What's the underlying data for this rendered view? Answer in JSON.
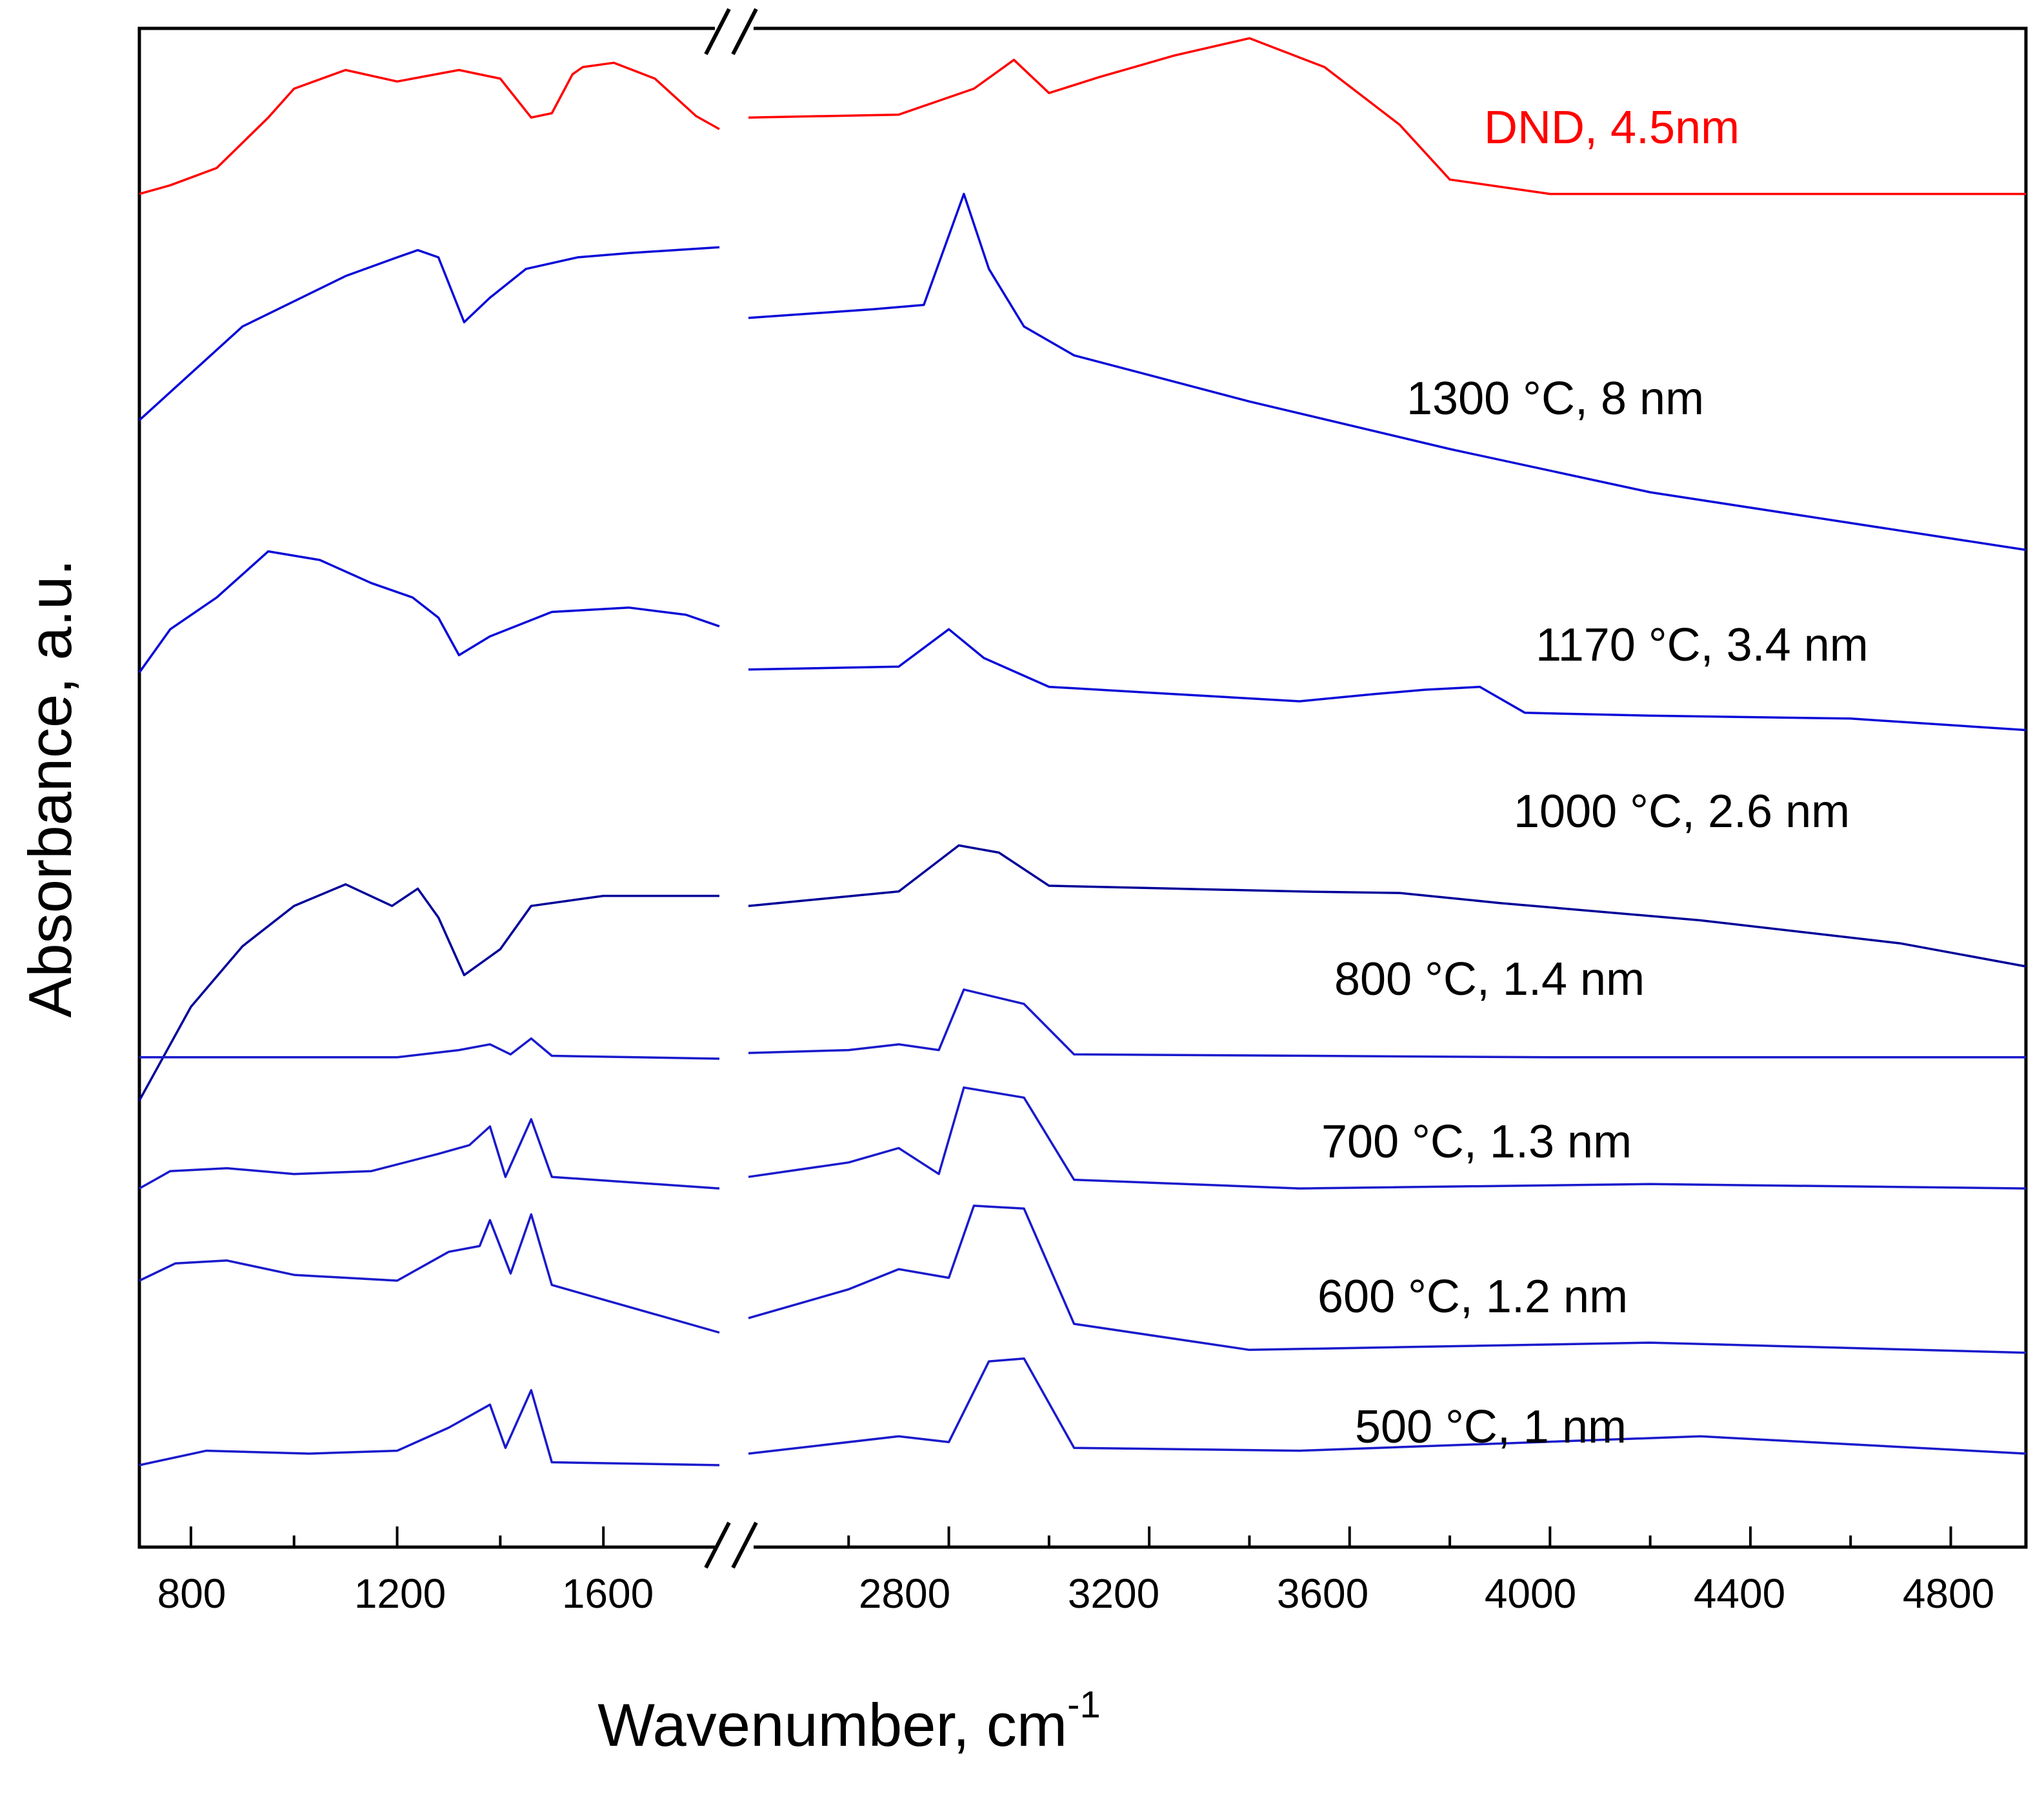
{
  "chart_data": {
    "type": "line",
    "title": "",
    "xlabel": "Wavenumber, cm",
    "xlabel_superscript": "-1",
    "ylabel": "Absorbance, a.u.",
    "axis_break": {
      "from": 1800,
      "to": 2400
    },
    "xlim_segments": [
      [
        700,
        1825
      ],
      [
        2400,
        4950
      ]
    ],
    "x_ticks": [
      "800",
      "1200",
      "1600",
      "2800",
      "3200",
      "3600",
      "4000",
      "4400",
      "4800"
    ],
    "x_tick_values": [
      800,
      1200,
      1600,
      2800,
      3200,
      3600,
      4000,
      4400,
      4800
    ],
    "ylim": [
      0,
      1
    ],
    "grid": false,
    "series": [
      {
        "name": "DND, 4.5nm",
        "color": "#ff0000",
        "points": [
          [
            700,
            0.912
          ],
          [
            760,
            0.918
          ],
          [
            850,
            0.93
          ],
          [
            950,
            0.965
          ],
          [
            1000,
            0.985
          ],
          [
            1100,
            0.998
          ],
          [
            1200,
            0.99
          ],
          [
            1320,
            0.998
          ],
          [
            1400,
            0.992
          ],
          [
            1460,
            0.965
          ],
          [
            1500,
            0.968
          ],
          [
            1540,
            0.995
          ],
          [
            1560,
            1.0
          ],
          [
            1620,
            1.003
          ],
          [
            1700,
            0.992
          ],
          [
            1780,
            0.966
          ],
          [
            1825,
            0.957
          ],
          [
            2400,
            0.965
          ],
          [
            2700,
            0.967
          ],
          [
            2850,
            0.985
          ],
          [
            2930,
            1.005
          ],
          [
            3000,
            0.982
          ],
          [
            3100,
            0.993
          ],
          [
            3250,
            1.008
          ],
          [
            3400,
            1.02
          ],
          [
            3550,
            1.0
          ],
          [
            3700,
            0.96
          ],
          [
            3800,
            0.922
          ],
          [
            4000,
            0.912
          ],
          [
            4950,
            0.912
          ]
        ]
      },
      {
        "name": "1300 °C, 8 nm",
        "color": "#0a0ad8",
        "points": [
          [
            700,
            0.755
          ],
          [
            900,
            0.82
          ],
          [
            1100,
            0.855
          ],
          [
            1200,
            0.868
          ],
          [
            1240,
            0.873
          ],
          [
            1280,
            0.868
          ],
          [
            1330,
            0.823
          ],
          [
            1380,
            0.84
          ],
          [
            1450,
            0.86
          ],
          [
            1550,
            0.868
          ],
          [
            1650,
            0.871
          ],
          [
            1825,
            0.875
          ],
          [
            2400,
            0.826
          ],
          [
            2650,
            0.832
          ],
          [
            2750,
            0.835
          ],
          [
            2830,
            0.912
          ],
          [
            2880,
            0.86
          ],
          [
            2950,
            0.82
          ],
          [
            3050,
            0.8
          ],
          [
            3400,
            0.768
          ],
          [
            3800,
            0.735
          ],
          [
            4200,
            0.705
          ],
          [
            4950,
            0.665
          ]
        ]
      },
      {
        "name": "1170 °C, 3.4 nm",
        "color": "#0a0ad8",
        "points": [
          [
            700,
            0.58
          ],
          [
            760,
            0.61
          ],
          [
            850,
            0.632
          ],
          [
            950,
            0.664
          ],
          [
            1050,
            0.658
          ],
          [
            1150,
            0.642
          ],
          [
            1230,
            0.632
          ],
          [
            1280,
            0.618
          ],
          [
            1320,
            0.592
          ],
          [
            1380,
            0.605
          ],
          [
            1500,
            0.622
          ],
          [
            1650,
            0.625
          ],
          [
            1760,
            0.62
          ],
          [
            1825,
            0.612
          ],
          [
            2400,
            0.582
          ],
          [
            2700,
            0.584
          ],
          [
            2800,
            0.61
          ],
          [
            2870,
            0.59
          ],
          [
            3000,
            0.57
          ],
          [
            3200,
            0.566
          ],
          [
            3500,
            0.56
          ],
          [
            3650,
            0.565
          ],
          [
            3750,
            0.568
          ],
          [
            3860,
            0.57
          ],
          [
            3950,
            0.552
          ],
          [
            4200,
            0.55
          ],
          [
            4600,
            0.548
          ],
          [
            4950,
            0.54
          ]
        ]
      },
      {
        "name": "1000 °C, 2.6 nm",
        "color": "#000099",
        "points": [
          [
            700,
            0.283
          ],
          [
            800,
            0.348
          ],
          [
            900,
            0.39
          ],
          [
            1000,
            0.418
          ],
          [
            1100,
            0.433
          ],
          [
            1190,
            0.418
          ],
          [
            1240,
            0.43
          ],
          [
            1280,
            0.41
          ],
          [
            1330,
            0.37
          ],
          [
            1400,
            0.388
          ],
          [
            1460,
            0.418
          ],
          [
            1600,
            0.425
          ],
          [
            1825,
            0.425
          ],
          [
            2400,
            0.418
          ],
          [
            2700,
            0.428
          ],
          [
            2820,
            0.46
          ],
          [
            2900,
            0.455
          ],
          [
            3000,
            0.432
          ],
          [
            3500,
            0.428
          ],
          [
            3700,
            0.427
          ],
          [
            3900,
            0.42
          ],
          [
            4300,
            0.408
          ],
          [
            4700,
            0.392
          ],
          [
            4950,
            0.376
          ]
        ]
      },
      {
        "name": "800 °C, 1.4 nm",
        "color": "#1a1acc",
        "points": [
          [
            700,
            0.313
          ],
          [
            1200,
            0.313
          ],
          [
            1320,
            0.318
          ],
          [
            1380,
            0.322
          ],
          [
            1420,
            0.315
          ],
          [
            1460,
            0.326
          ],
          [
            1500,
            0.314
          ],
          [
            1825,
            0.312
          ],
          [
            2400,
            0.316
          ],
          [
            2600,
            0.318
          ],
          [
            2700,
            0.322
          ],
          [
            2780,
            0.318
          ],
          [
            2830,
            0.36
          ],
          [
            2950,
            0.35
          ],
          [
            3050,
            0.315
          ],
          [
            4000,
            0.313
          ],
          [
            4950,
            0.313
          ]
        ]
      },
      {
        "name": "700 °C, 1.3 nm",
        "color": "#1a1acc",
        "points": [
          [
            700,
            0.222
          ],
          [
            760,
            0.234
          ],
          [
            870,
            0.236
          ],
          [
            1000,
            0.232
          ],
          [
            1150,
            0.234
          ],
          [
            1280,
            0.246
          ],
          [
            1340,
            0.252
          ],
          [
            1380,
            0.265
          ],
          [
            1410,
            0.23
          ],
          [
            1460,
            0.27
          ],
          [
            1500,
            0.23
          ],
          [
            1825,
            0.222
          ],
          [
            2400,
            0.23
          ],
          [
            2600,
            0.24
          ],
          [
            2700,
            0.25
          ],
          [
            2780,
            0.232
          ],
          [
            2830,
            0.292
          ],
          [
            2950,
            0.285
          ],
          [
            3050,
            0.228
          ],
          [
            3500,
            0.222
          ],
          [
            4200,
            0.225
          ],
          [
            4950,
            0.222
          ]
        ]
      },
      {
        "name": "600 °C, 1.2 nm",
        "color": "#1a1acc",
        "points": [
          [
            700,
            0.158
          ],
          [
            770,
            0.17
          ],
          [
            870,
            0.172
          ],
          [
            1000,
            0.162
          ],
          [
            1200,
            0.158
          ],
          [
            1300,
            0.178
          ],
          [
            1360,
            0.182
          ],
          [
            1380,
            0.2
          ],
          [
            1420,
            0.163
          ],
          [
            1460,
            0.204
          ],
          [
            1500,
            0.155
          ],
          [
            1825,
            0.122
          ],
          [
            2400,
            0.132
          ],
          [
            2600,
            0.152
          ],
          [
            2700,
            0.166
          ],
          [
            2800,
            0.16
          ],
          [
            2850,
            0.21
          ],
          [
            2950,
            0.208
          ],
          [
            3050,
            0.128
          ],
          [
            3400,
            0.11
          ],
          [
            4200,
            0.115
          ],
          [
            4950,
            0.108
          ]
        ]
      },
      {
        "name": "500 °C, 1 nm",
        "color": "#1a1acc",
        "points": [
          [
            700,
            0.03
          ],
          [
            830,
            0.04
          ],
          [
            1030,
            0.038
          ],
          [
            1200,
            0.04
          ],
          [
            1300,
            0.056
          ],
          [
            1380,
            0.072
          ],
          [
            1410,
            0.042
          ],
          [
            1460,
            0.082
          ],
          [
            1500,
            0.032
          ],
          [
            1825,
            0.03
          ],
          [
            2400,
            0.038
          ],
          [
            2700,
            0.05
          ],
          [
            2800,
            0.046
          ],
          [
            2880,
            0.102
          ],
          [
            2950,
            0.104
          ],
          [
            3050,
            0.042
          ],
          [
            3500,
            0.04
          ],
          [
            4300,
            0.05
          ],
          [
            4950,
            0.038
          ]
        ]
      }
    ],
    "labels": [
      {
        "text": "DND, 4.5nm",
        "color": "#ff0000"
      },
      {
        "text": "1300 °C, 8 nm",
        "color": "#000000"
      },
      {
        "text": "1170 °C, 3.4 nm",
        "color": "#000000"
      },
      {
        "text": "1000 °C, 2.6 nm",
        "color": "#000000"
      },
      {
        "text": "800 °C, 1.4 nm",
        "color": "#000000"
      },
      {
        "text": "700 °C, 1.3 nm",
        "color": "#000000"
      },
      {
        "text": "600 °C, 1.2 nm",
        "color": "#000000"
      },
      {
        "text": "500 °C, 1 nm",
        "color": "#000000"
      }
    ]
  }
}
